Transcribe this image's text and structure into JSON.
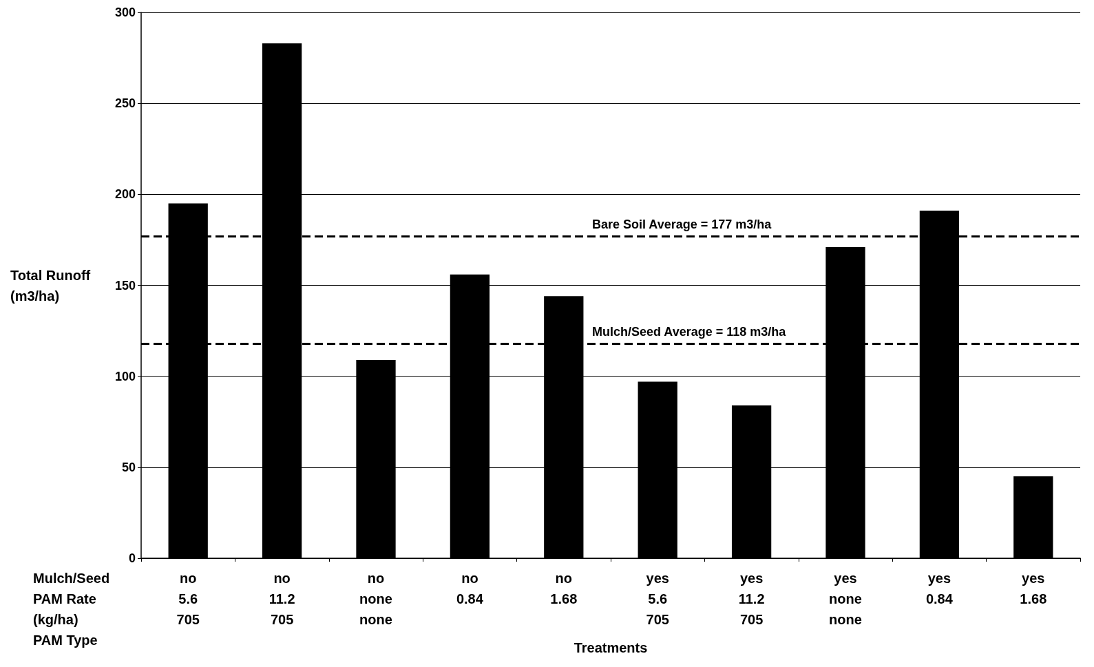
{
  "chart_data": {
    "type": "bar",
    "xlabel": "Treatments",
    "ylabel": "Total Runoff\n(m3/ha)",
    "categories": [
      "no\n5.6\n705",
      "no\n11.2\n705",
      "no\nnone\nnone",
      "no\n0.84",
      "no\n1.68",
      "yes\n5.6\n705",
      "yes\n11.2\n705",
      "yes\nnone\nnone",
      "yes\n0.84",
      "yes\n1.68"
    ],
    "values": [
      195,
      283,
      109,
      156,
      144,
      97,
      84,
      171,
      191,
      45
    ],
    "color": "#000000",
    "ylim": [
      0,
      300
    ],
    "yticks": [
      0,
      50,
      100,
      150,
      200,
      250,
      300
    ],
    "grid": "y",
    "ref_lines": [
      {
        "axis": "y",
        "value": 177,
        "label": "Bare Soil Average = 177 m3/ha",
        "color": "#000000",
        "line_style": "dashed"
      },
      {
        "axis": "y",
        "value": 118,
        "label": "Mulch/Seed Average = 118 m3/ha",
        "color": "#000000",
        "line_style": "dashed"
      }
    ],
    "annotations": [
      "Mulch/Seed",
      "PAM Rate",
      "(kg/ha)",
      "PAM Type"
    ]
  }
}
